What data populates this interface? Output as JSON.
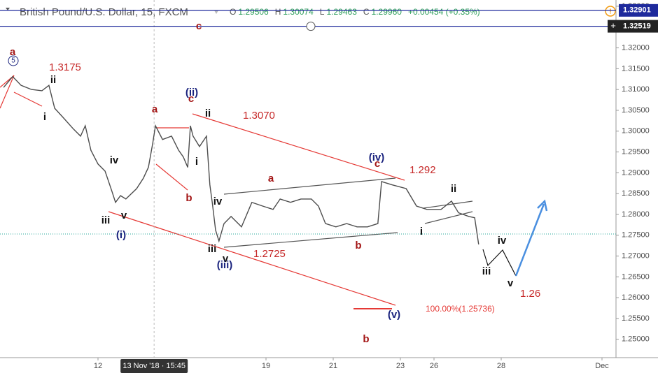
{
  "chart_data": {
    "type": "line",
    "title": "British Pound/U.S. Dollar, 15, FXCM",
    "ohlc": [
      {
        "label": "O",
        "value": "1.29506"
      },
      {
        "label": "H",
        "value": "1.30074"
      },
      {
        "label": "L",
        "value": "1.29463"
      },
      {
        "label": "C",
        "value": "1.29960"
      }
    ],
    "change": "+0.00454 (+0.35%)",
    "line_color": "#4d4d4d",
    "x": [
      -2.81,
      -2.54,
      -2.29,
      -1.98,
      -1.67,
      -1.46,
      -1.29,
      -1.04,
      -0.73,
      -0.52,
      -0.38,
      -0.21,
      0,
      0.21,
      0.42,
      0.52,
      0.67,
      0.83,
      1.15,
      1.35,
      1.5,
      1.63,
      1.71,
      1.92,
      2.19,
      2.4,
      2.54,
      2.67,
      2.75,
      2.83,
      3.02,
      3.23,
      3.33,
      3.4,
      3.5,
      3.6,
      3.75,
      3.96,
      4.27,
      4.58,
      4.9,
      5.21,
      5.42,
      5.73,
      6.04,
      6.35,
      6.56,
      6.77,
      7.08,
      7.4,
      7.71,
      8.02,
      8.33,
      8.44,
      8.75,
      9.17,
      9.48,
      9.79,
      10.21,
      10.52,
      10.73,
      11.04,
      11.21,
      11.33
    ],
    "values": [
      1.3105,
      1.3131,
      1.311,
      1.31,
      1.3097,
      1.311,
      1.3055,
      1.3033,
      1.3005,
      1.2988,
      1.3013,
      1.2954,
      1.2921,
      1.2904,
      1.2854,
      1.2829,
      1.2845,
      1.2837,
      1.2862,
      1.2887,
      1.2913,
      1.2971,
      1.3013,
      1.298,
      1.2988,
      1.2954,
      1.2938,
      1.2913,
      1.3013,
      1.2988,
      1.2963,
      1.2988,
      1.2871,
      1.2829,
      1.2762,
      1.2736,
      1.2778,
      1.2795,
      1.277,
      1.2829,
      1.282,
      1.2812,
      1.2837,
      1.2829,
      1.2837,
      1.2837,
      1.282,
      1.2778,
      1.277,
      1.2778,
      1.277,
      1.277,
      1.2778,
      1.2879,
      1.2871,
      1.2862,
      1.282,
      1.2812,
      1.2812,
      1.2832,
      1.2804,
      1.2795,
      1.2792,
      1.2728
    ],
    "xlim": [
      -2.917,
      15.417
    ],
    "xticks": [
      {
        "value": 0,
        "label": "12"
      },
      {
        "value": 5,
        "label": "19"
      },
      {
        "value": 7,
        "label": "21"
      },
      {
        "value": 9,
        "label": "23"
      },
      {
        "value": 10,
        "label": "26"
      },
      {
        "value": 12,
        "label": "28"
      },
      {
        "value": 15,
        "label": "Dec"
      }
    ],
    "ylim": [
      1.2456,
      1.3315
    ],
    "yticks": [
      {
        "value": 1.25,
        "label": "1.25000"
      },
      {
        "value": 1.255,
        "label": "1.25500"
      },
      {
        "value": 1.26,
        "label": "1.26000"
      },
      {
        "value": 1.265,
        "label": "1.26500"
      },
      {
        "value": 1.27,
        "label": "1.27000"
      },
      {
        "value": 1.275,
        "label": "1.27500"
      },
      {
        "value": 1.28,
        "label": "1.28000"
      },
      {
        "value": 1.285,
        "label": "1.28500"
      },
      {
        "value": 1.29,
        "label": "1.29000"
      },
      {
        "value": 1.295,
        "label": "1.29500"
      },
      {
        "value": 1.3,
        "label": "1.30000"
      },
      {
        "value": 1.305,
        "label": "1.30500"
      },
      {
        "value": 1.31,
        "label": "1.31000"
      },
      {
        "value": 1.315,
        "label": "1.31500"
      },
      {
        "value": 1.32,
        "label": "1.32000"
      },
      {
        "value": 1.325,
        "label": "1.32500"
      },
      {
        "value": 1.33,
        "label": "1.33000"
      }
    ],
    "grid": false,
    "price_lines": [
      {
        "value": 1.32901,
        "label": "1.32901",
        "color": "#1e2a9c"
      },
      {
        "value": 1.32519,
        "label": "1.32519",
        "color": "#1e2a9c"
      }
    ],
    "last_price": 1.2753,
    "crosshair": {
      "x": 1.67,
      "label": "13 Nov '18 · 15:45"
    },
    "annotations": [
      {
        "text": "a",
        "color": "#a31515"
      },
      {
        "text": "5",
        "color": "#1a237e"
      },
      {
        "text": "1.3175",
        "color": "#c62828"
      },
      {
        "text": "ii",
        "color": "#111"
      },
      {
        "text": "i",
        "color": "#111"
      },
      {
        "text": "iv",
        "color": "#111"
      },
      {
        "text": "iii",
        "color": "#111"
      },
      {
        "text": "v",
        "color": "#111"
      },
      {
        "text": "(i)",
        "color": "#1a237e"
      },
      {
        "text": "a",
        "color": "#a31515"
      },
      {
        "text": "(ii)",
        "color": "#1a237e"
      },
      {
        "text": "c",
        "color": "#a31515"
      },
      {
        "text": "ii",
        "color": "#111"
      },
      {
        "text": "1.3070",
        "color": "#c62828"
      },
      {
        "text": "i",
        "color": "#111"
      },
      {
        "text": "b",
        "color": "#a31515"
      },
      {
        "text": "iv",
        "color": "#111"
      },
      {
        "text": "iii",
        "color": "#111"
      },
      {
        "text": "v",
        "color": "#111"
      },
      {
        "text": "(iii)",
        "color": "#1a237e"
      },
      {
        "text": "1.2725",
        "color": "#c62828"
      },
      {
        "text": "a",
        "color": "#a31515"
      },
      {
        "text": "b",
        "color": "#a31515"
      },
      {
        "text": "(iv)",
        "color": "#1a237e"
      },
      {
        "text": "c",
        "color": "#a31515"
      },
      {
        "text": "1.292",
        "color": "#c62828"
      },
      {
        "text": "ii",
        "color": "#111"
      },
      {
        "text": "i",
        "color": "#111"
      },
      {
        "text": "iv",
        "color": "#111"
      },
      {
        "text": "iii",
        "color": "#111"
      },
      {
        "text": "v",
        "color": "#111"
      },
      {
        "text": "1.26",
        "color": "#c62828"
      },
      {
        "text": "100.00%(1.25736)",
        "color": "#e53935"
      },
      {
        "text": "(v)",
        "color": "#1a237e"
      },
      {
        "text": "b",
        "color": "#a31515"
      },
      {
        "text": "c",
        "color": "#a31515"
      }
    ]
  }
}
